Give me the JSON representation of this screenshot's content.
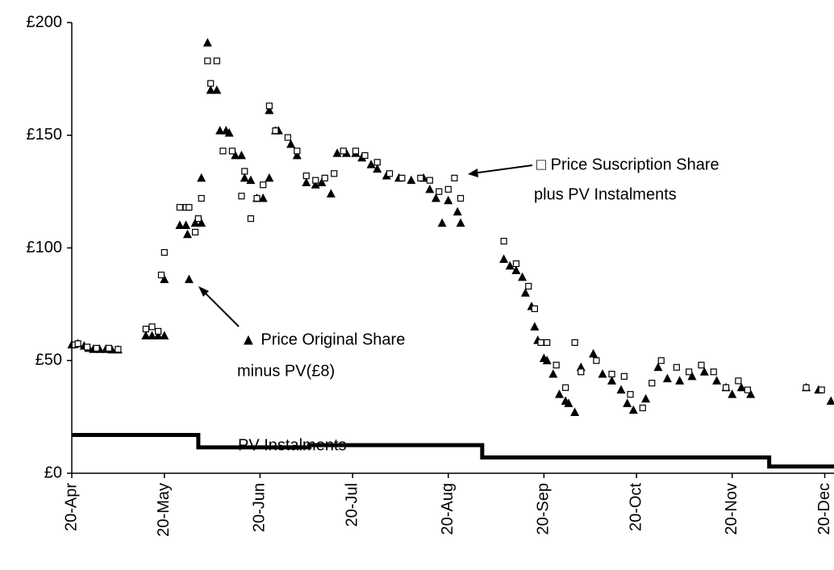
{
  "chart_data": {
    "type": "scatter",
    "xlim": [
      0,
      247
    ],
    "xticks": [
      {
        "value": 0,
        "label": "20-Apr"
      },
      {
        "value": 30,
        "label": "20-May"
      },
      {
        "value": 61,
        "label": "20-Jun"
      },
      {
        "value": 91,
        "label": "20-Jul"
      },
      {
        "value": 122,
        "label": "20-Aug"
      },
      {
        "value": 153,
        "label": "20-Sep"
      },
      {
        "value": 183,
        "label": "20-Oct"
      },
      {
        "value": 214,
        "label": "20-Nov"
      },
      {
        "value": 244,
        "label": "20-Dec"
      }
    ],
    "ylim": [
      0,
      200
    ],
    "yticks": [
      {
        "value": 0,
        "label": "£0"
      },
      {
        "value": 50,
        "label": "£50"
      },
      {
        "value": 100,
        "label": "£100"
      },
      {
        "value": 150,
        "label": "£150"
      },
      {
        "value": 200,
        "label": "£200"
      }
    ],
    "grid": false,
    "series": [
      {
        "marker": "triangle",
        "color": "#000000",
        "label_lines": [
          "▲ Price Original Share",
          "minus PV(£8)"
        ],
        "x": [
          0,
          2,
          4,
          5.5,
          7,
          9,
          11,
          13,
          15,
          24,
          26,
          28,
          30,
          30,
          38,
          35,
          37,
          37.5,
          40,
          42,
          42,
          44,
          45,
          47,
          48,
          50,
          51,
          53,
          55,
          56,
          58,
          60,
          62,
          64,
          64,
          66,
          67,
          71,
          73,
          76,
          79,
          81,
          84,
          86,
          89,
          92,
          94,
          97,
          99,
          102,
          106,
          110,
          114,
          116,
          118,
          120,
          122,
          125,
          126,
          140,
          142,
          144,
          146,
          147,
          149,
          150,
          151,
          153,
          154,
          156,
          158,
          160,
          161,
          163,
          165,
          169,
          172,
          175,
          178,
          180,
          182,
          186,
          190,
          193,
          197,
          201,
          205,
          209,
          212,
          214,
          217,
          220,
          238,
          242,
          246
        ],
        "values": [
          57,
          57.5,
          56.5,
          55.5,
          55,
          55,
          55,
          54.8,
          54.8,
          61,
          61,
          61,
          61,
          86,
          86,
          110,
          110,
          106,
          111,
          111,
          131,
          191,
          170,
          170,
          152,
          152,
          151,
          141,
          141,
          131,
          130,
          122,
          122,
          131,
          161,
          152,
          152,
          146,
          141,
          129,
          128,
          129,
          124,
          142,
          142,
          142,
          140,
          137,
          135,
          132,
          131,
          130,
          131,
          126,
          122,
          111,
          121,
          116,
          111,
          95,
          92,
          90,
          87,
          80,
          74,
          65,
          59,
          51,
          50,
          44,
          35,
          32,
          31,
          27,
          47,
          53,
          44,
          41,
          37,
          31,
          28,
          33,
          47,
          42,
          41,
          43,
          45,
          41,
          38,
          35,
          38,
          35,
          38,
          37,
          32
        ]
      },
      {
        "marker": "square",
        "color": "#000000",
        "label_lines": [
          "□  Price Suscription Share",
          "plus PV Instalments"
        ],
        "x": [
          1,
          2,
          5,
          8,
          12,
          15,
          24,
          26,
          28,
          30,
          29,
          35,
          37,
          38,
          40,
          41,
          42,
          44,
          45,
          47,
          49,
          52,
          56,
          55,
          58,
          60,
          62,
          64,
          66,
          70,
          73,
          76,
          79,
          82,
          85,
          88,
          92,
          95,
          99,
          103,
          107,
          113,
          116,
          119,
          122,
          124,
          126,
          140,
          144,
          148,
          150,
          152,
          154,
          157,
          160,
          163,
          165,
          170,
          175,
          179,
          181,
          185,
          188,
          191,
          196,
          200,
          204,
          208,
          212,
          216,
          219,
          238,
          243
        ],
        "values": [
          57,
          57.5,
          56,
          55.5,
          55.5,
          55,
          64,
          65,
          63,
          98,
          88,
          118,
          118,
          118,
          107,
          113,
          122,
          183,
          173,
          183,
          143,
          143,
          134,
          123,
          113,
          122,
          128,
          163,
          152,
          149,
          143,
          132,
          130,
          131,
          133,
          143,
          143,
          141,
          138,
          133,
          131,
          131,
          130,
          125,
          126,
          131,
          122,
          103,
          93,
          83,
          73,
          58,
          58,
          48,
          38,
          58,
          45,
          50,
          44,
          43,
          35,
          29,
          40,
          50,
          47,
          45,
          48,
          45,
          38,
          41,
          37,
          38,
          37
        ]
      },
      {
        "type": "line",
        "color": "#000000",
        "name": "PV Instalments",
        "x": [
          0,
          41,
          41,
          77,
          77,
          133,
          133,
          226,
          226,
          247
        ],
        "values": [
          17,
          17,
          11.5,
          11.5,
          12.5,
          12.5,
          7,
          7,
          3,
          3
        ]
      }
    ]
  }
}
